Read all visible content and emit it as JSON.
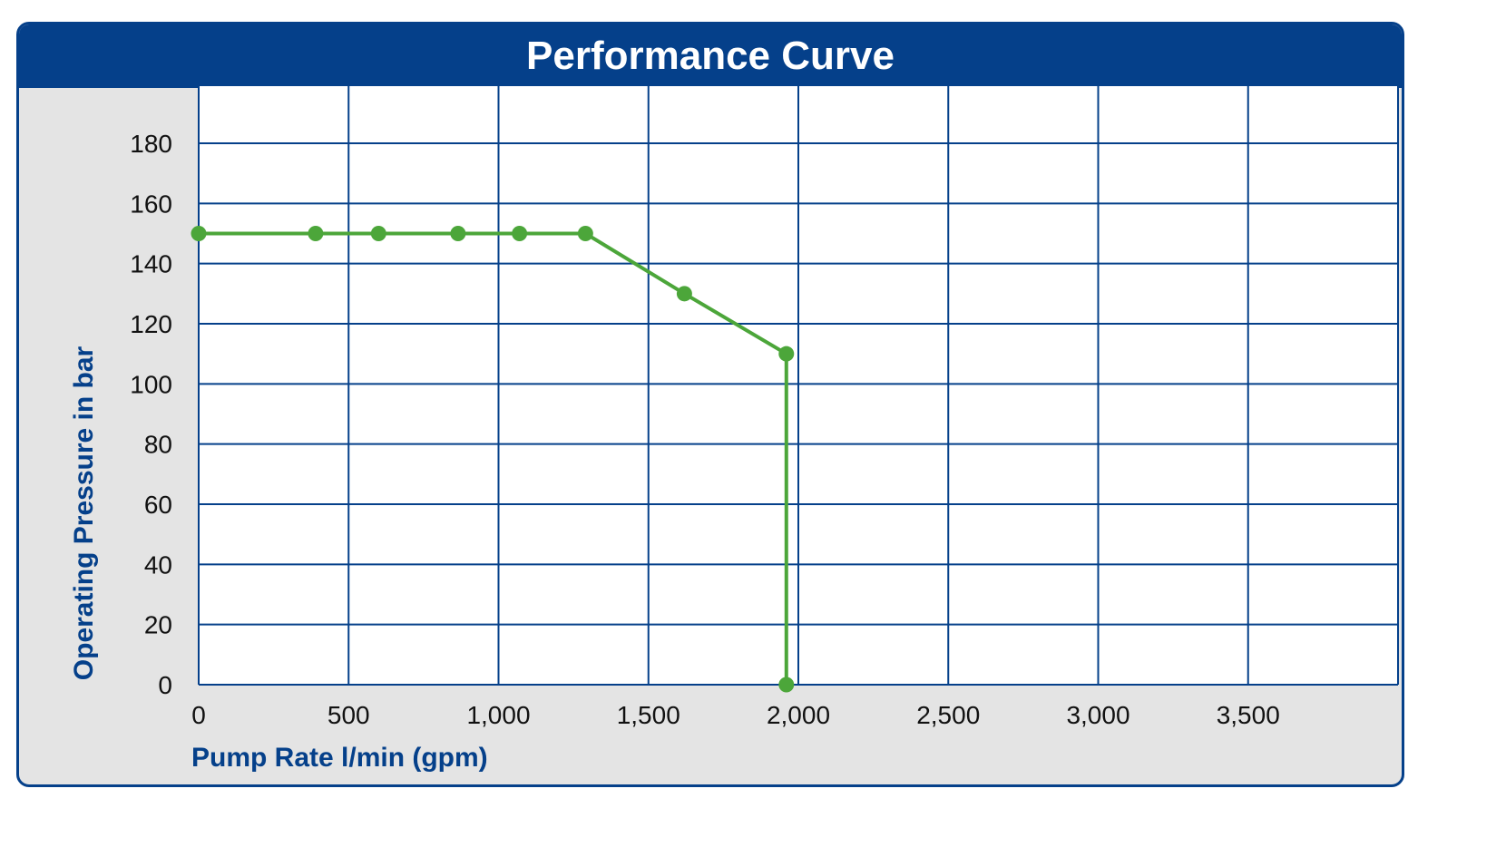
{
  "header": {
    "title": "Performance Curve"
  },
  "colors": {
    "brand": "#05408a",
    "plot_bg": "#ffffff",
    "panel_bg": "#e4e4e4",
    "series": "#4ca63a",
    "grid": "#05408a"
  },
  "chart_data": {
    "type": "line",
    "title": "Performance Curve",
    "xlabel": "Pump Rate l/min (gpm)",
    "ylabel": "Operating Pressure in bar",
    "xlim": [
      0,
      4000
    ],
    "ylim": [
      0,
      190
    ],
    "x_ticks": [
      0,
      500,
      1000,
      1500,
      2000,
      2500,
      3000,
      3500
    ],
    "x_tick_labels": [
      "0",
      "500",
      "1,000",
      "1,500",
      "2,000",
      "2,500",
      "3,000",
      "3,500"
    ],
    "y_ticks": [
      0,
      20,
      40,
      60,
      80,
      100,
      120,
      140,
      160,
      180
    ],
    "y_tick_labels": [
      "0",
      "20",
      "40",
      "60",
      "80",
      "100",
      "120",
      "140",
      "160",
      "180"
    ],
    "grid": true,
    "series": [
      {
        "x": [
          0,
          390,
          600,
          865,
          1070,
          1290,
          1620,
          1960,
          1960
        ],
        "y": [
          150,
          150,
          150,
          150,
          150,
          150,
          130,
          110,
          0
        ]
      }
    ]
  }
}
